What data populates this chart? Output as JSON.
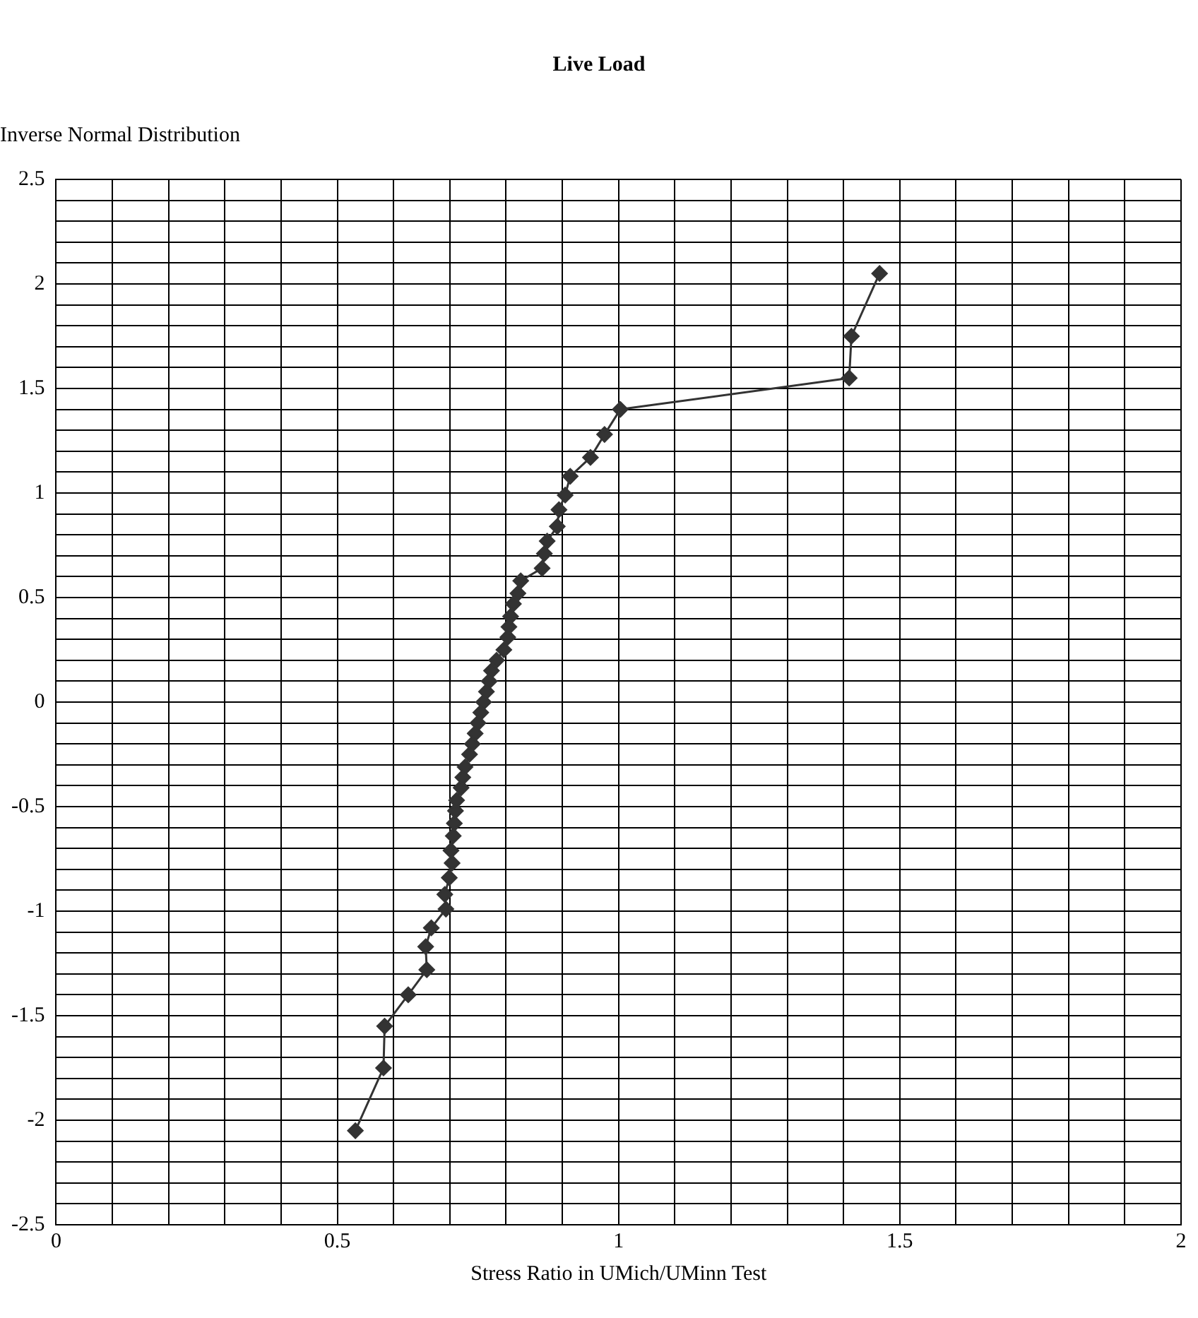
{
  "chart_data": {
    "type": "line",
    "title": "Live Load",
    "xlabel": "Stress Ratio in UMich/UMinn Test",
    "ylabel": "Inverse Normal Distribution",
    "series": [
      {
        "color": "#333333",
        "x": [
          0.532,
          0.582,
          0.584,
          0.626,
          0.659,
          0.657,
          0.667,
          0.693,
          0.691,
          0.699,
          0.704,
          0.702,
          0.706,
          0.708,
          0.71,
          0.712,
          0.72,
          0.723,
          0.727,
          0.735,
          0.74,
          0.745,
          0.75,
          0.755,
          0.76,
          0.765,
          0.77,
          0.774,
          0.783,
          0.796,
          0.803,
          0.805,
          0.808,
          0.813,
          0.821,
          0.826,
          0.864,
          0.868,
          0.873,
          0.891,
          0.894,
          0.905,
          0.914,
          0.95,
          0.975,
          1.003,
          1.41,
          1.414,
          1.464
        ],
        "values": [
          -2.05,
          -1.75,
          -1.55,
          -1.4,
          -1.28,
          -1.17,
          -1.08,
          -0.99,
          -0.92,
          -0.84,
          -0.77,
          -0.71,
          -0.64,
          -0.58,
          -0.52,
          -0.47,
          -0.41,
          -0.36,
          -0.31,
          -0.25,
          -0.2,
          -0.15,
          -0.1,
          -0.05,
          0,
          0.05,
          0.1,
          0.15,
          0.2,
          0.25,
          0.31,
          0.36,
          0.41,
          0.47,
          0.52,
          0.58,
          0.64,
          0.71,
          0.77,
          0.84,
          0.92,
          0.99,
          1.08,
          1.17,
          1.28,
          1.4,
          1.55,
          1.75,
          2.05
        ]
      }
    ],
    "xlim": [
      0,
      2
    ],
    "ylim": [
      -2.5,
      2.5
    ],
    "xticks": [
      0,
      {
        "value": 0.1,
        "label": null
      },
      {
        "value": 0.2,
        "label": null
      },
      {
        "value": 0.3,
        "label": null
      },
      {
        "value": 0.4,
        "label": null
      },
      0.5,
      {
        "value": 0.6,
        "label": null
      },
      {
        "value": 0.7,
        "label": null
      },
      {
        "value": 0.8,
        "label": null
      },
      {
        "value": 0.9,
        "label": null
      },
      1,
      {
        "value": 1.1,
        "label": null
      },
      {
        "value": 1.2,
        "label": null
      },
      {
        "value": 1.3,
        "label": null
      },
      {
        "value": 1.4,
        "label": null
      },
      1.5,
      {
        "value": 1.6,
        "label": null
      },
      {
        "value": 1.7,
        "label": null
      },
      {
        "value": 1.8,
        "label": null
      },
      {
        "value": 1.9,
        "label": null
      },
      2
    ],
    "yticks": [
      -2.5,
      {
        "value": -2.4,
        "label": null
      },
      {
        "value": -2.3,
        "label": null
      },
      {
        "value": -2.2,
        "label": null
      },
      {
        "value": -2.1,
        "label": null
      },
      -2,
      {
        "value": -1.9,
        "label": null
      },
      {
        "value": -1.8,
        "label": null
      },
      {
        "value": -1.7,
        "label": null
      },
      {
        "value": -1.6,
        "label": null
      },
      -1.5,
      {
        "value": -1.4,
        "label": null
      },
      {
        "value": -1.3,
        "label": null
      },
      {
        "value": -1.2,
        "label": null
      },
      {
        "value": -1.1,
        "label": null
      },
      -1,
      {
        "value": -0.9,
        "label": null
      },
      {
        "value": -0.8,
        "label": null
      },
      {
        "value": -0.7,
        "label": null
      },
      {
        "value": -0.6,
        "label": null
      },
      -0.5,
      {
        "value": -0.4,
        "label": null
      },
      {
        "value": -0.3,
        "label": null
      },
      {
        "value": -0.2,
        "label": null
      },
      {
        "value": -0.1,
        "label": null
      },
      0,
      {
        "value": 0.1,
        "label": null
      },
      {
        "value": 0.2,
        "label": null
      },
      {
        "value": 0.3,
        "label": null
      },
      {
        "value": 0.4,
        "label": null
      },
      0.5,
      {
        "value": 0.6,
        "label": null
      },
      {
        "value": 0.7,
        "label": null
      },
      {
        "value": 0.8,
        "label": null
      },
      {
        "value": 0.9,
        "label": null
      },
      1,
      {
        "value": 1.1,
        "label": null
      },
      {
        "value": 1.2,
        "label": null
      },
      {
        "value": 1.3,
        "label": null
      },
      {
        "value": 1.4,
        "label": null
      },
      1.5,
      {
        "value": 1.6,
        "label": null
      },
      {
        "value": 1.7,
        "label": null
      },
      {
        "value": 1.8,
        "label": null
      },
      {
        "value": 1.9,
        "label": null
      },
      2,
      {
        "value": 2.1,
        "label": null
      },
      {
        "value": 2.2,
        "label": null
      },
      {
        "value": 2.3,
        "label": null
      },
      {
        "value": 2.4,
        "label": null
      },
      2.5
    ],
    "grid": true,
    "legend": false,
    "marker": "diamond",
    "line_style": "solid"
  }
}
